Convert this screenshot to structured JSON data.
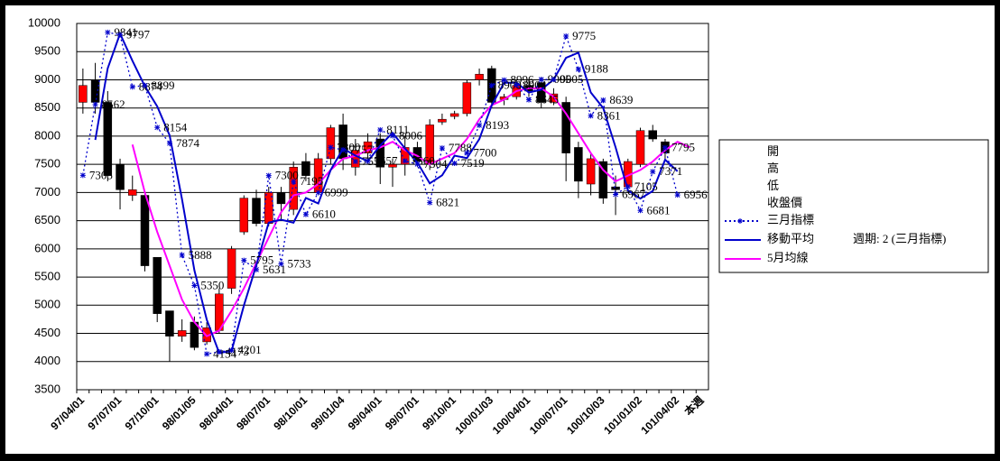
{
  "chart_data": {
    "type": "candlestick",
    "categories": [
      "97/04/01",
      null,
      null,
      "97/07/01",
      null,
      null,
      "97/10/01",
      null,
      null,
      "98/01/05",
      null,
      null,
      "98/04/01",
      null,
      null,
      "98/07/01",
      null,
      null,
      "98/10/01",
      null,
      null,
      "99/01/04",
      null,
      null,
      "99/04/01",
      null,
      null,
      "99/07/01",
      null,
      null,
      "99/10/01",
      null,
      null,
      "100/01/03",
      null,
      null,
      "100/04/01",
      null,
      null,
      "100/07/01",
      null,
      null,
      "100/10/03",
      null,
      null,
      "101/01/02",
      null,
      null,
      "101/04/02",
      null,
      "本週"
    ],
    "ylim": [
      3500,
      10000
    ],
    "yticks": [
      3500,
      4000,
      4500,
      5000,
      5500,
      6000,
      6500,
      7000,
      7500,
      8000,
      8500,
      9000,
      9500,
      10000
    ],
    "grid": true,
    "up_color": "#ff0000",
    "down_color": "#000000",
    "series": [
      {
        "name": "開",
        "values": [
          8600,
          9000,
          8600,
          7500,
          6950,
          6950,
          5850,
          4900,
          4450,
          4700,
          4350,
          4550,
          5300,
          6300,
          6900,
          6450,
          7000,
          6700,
          7550,
          7000,
          7600,
          8200,
          7450,
          7700,
          7950,
          7450,
          7500,
          7800,
          7500,
          8250,
          8350,
          8400,
          9000,
          9200,
          8650,
          8700,
          8900,
          8950,
          8600,
          8600,
          7800,
          7150,
          7550,
          7100,
          7100,
          7500,
          8100,
          7900,
          null,
          null,
          null
        ]
      },
      {
        "name": "高",
        "values": [
          9200,
          9300,
          8800,
          7600,
          7300,
          7000,
          5850,
          4900,
          4750,
          4800,
          4700,
          5300,
          6050,
          6950,
          7050,
          7100,
          7100,
          7550,
          7700,
          7700,
          8200,
          8400,
          7950,
          8050,
          8050,
          7600,
          8000,
          7900,
          8300,
          8400,
          8450,
          9000,
          9200,
          9250,
          8750,
          9000,
          9000,
          9050,
          8850,
          8700,
          7900,
          7700,
          7600,
          7300,
          7600,
          8150,
          8200,
          7950,
          null,
          null,
          null
        ]
      },
      {
        "name": "低",
        "values": [
          8400,
          8400,
          7200,
          6700,
          6850,
          5600,
          4700,
          4000,
          4350,
          4200,
          4300,
          4500,
          5200,
          6250,
          6400,
          6400,
          6500,
          6600,
          7200,
          6950,
          7500,
          7400,
          7300,
          7500,
          7150,
          7100,
          7300,
          7450,
          7400,
          8200,
          8300,
          8350,
          8900,
          8500,
          8550,
          8650,
          8700,
          8500,
          8550,
          7200,
          6900,
          6950,
          6800,
          6600,
          7000,
          7450,
          7900,
          7600,
          null,
          null,
          null
        ]
      },
      {
        "name": "收盤價",
        "values": [
          8900,
          8600,
          7300,
          7050,
          7050,
          5700,
          4850,
          4450,
          4550,
          4250,
          4600,
          5200,
          6000,
          6900,
          6450,
          7000,
          6800,
          7450,
          7300,
          7600,
          8150,
          7600,
          7750,
          7900,
          7450,
          7500,
          7800,
          7550,
          8200,
          8300,
          8400,
          8950,
          9100,
          8600,
          8700,
          8900,
          8800,
          8600,
          8750,
          7700,
          7200,
          7600,
          6900,
          7050,
          7550,
          8100,
          7950,
          7700,
          null,
          null,
          null
        ]
      },
      {
        "name": "三月指標",
        "color": "#0000cc",
        "values": [
          7305,
          8562,
          9841,
          9797,
          8874,
          8899,
          8154,
          7874,
          5888,
          5350,
          4134,
          4173,
          4201,
          5795,
          5631,
          7300,
          5733,
          7195,
          6610,
          6999,
          7800,
          7757,
          7550,
          7557,
          8111,
          8006,
          7560,
          7504,
          6821,
          7788,
          7519,
          7700,
          8193,
          8900,
          8996,
          8904,
          8645,
          9005,
          9005,
          9775,
          9188,
          8361,
          8639,
          6967,
          7105,
          6681,
          7371,
          7795,
          6956,
          null,
          null
        ]
      },
      {
        "name": "移動平均",
        "color": "#0000cc",
        "values": [
          null,
          7934,
          9202,
          9819,
          9336,
          8887,
          8527,
          8014,
          6881,
          5619,
          4742,
          4154,
          4187,
          4998,
          5713,
          6466,
          6517,
          6464,
          6903,
          6805,
          7400,
          7779,
          7654,
          7554,
          7834,
          8059,
          7783,
          7532,
          7163,
          7305,
          7654,
          7610,
          7947,
          8547,
          8948,
          8950,
          8775,
          8825,
          9005,
          9390,
          9482,
          8775,
          8500,
          7803,
          7036,
          6893,
          7026,
          7583,
          7376,
          null,
          null
        ]
      },
      {
        "name": "5月均線",
        "color": "#ff00ff",
        "values": [
          null,
          null,
          null,
          null,
          7850,
          7000,
          6300,
          5700,
          5100,
          4700,
          4450,
          4550,
          4900,
          5300,
          5750,
          6200,
          6650,
          6950,
          7000,
          7150,
          7400,
          7600,
          7650,
          7750,
          7800,
          7900,
          7750,
          7650,
          7500,
          7600,
          7700,
          7950,
          8300,
          8550,
          8650,
          8800,
          8850,
          8850,
          8700,
          8400,
          8050,
          7700,
          7400,
          7200,
          7300,
          7400,
          7550,
          7750,
          7900,
          7800,
          null
        ]
      }
    ],
    "period_label": "週期: 2 (三月指標)"
  }
}
